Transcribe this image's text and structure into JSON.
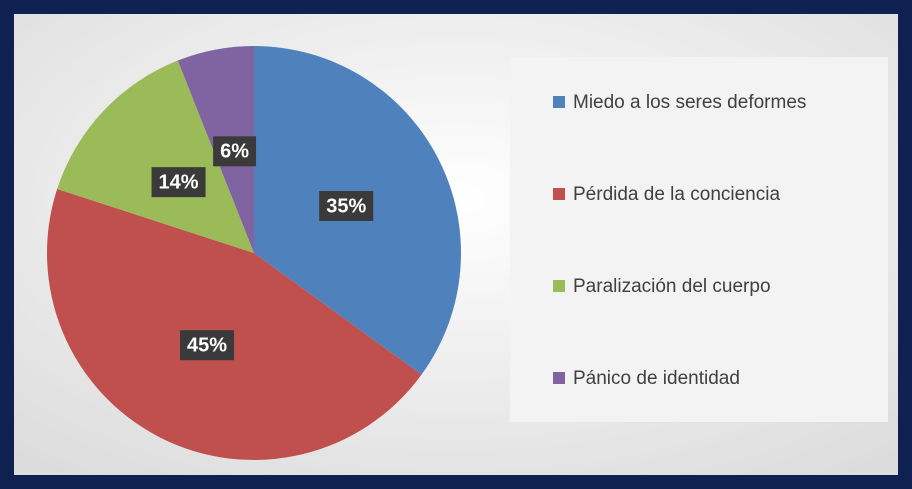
{
  "chart_data": {
    "type": "pie",
    "categories": [
      "Miedo a los seres deformes",
      "Pérdida de la conciencia",
      "Paralización del cuerpo",
      "Pánico de identidad"
    ],
    "values": [
      35,
      45,
      14,
      6
    ],
    "value_labels": [
      "35%",
      "45%",
      "14%",
      "6%"
    ],
    "colors": [
      "#4f81bd",
      "#c0504d",
      "#9bbb59",
      "#8064a2"
    ],
    "legend": "right"
  }
}
